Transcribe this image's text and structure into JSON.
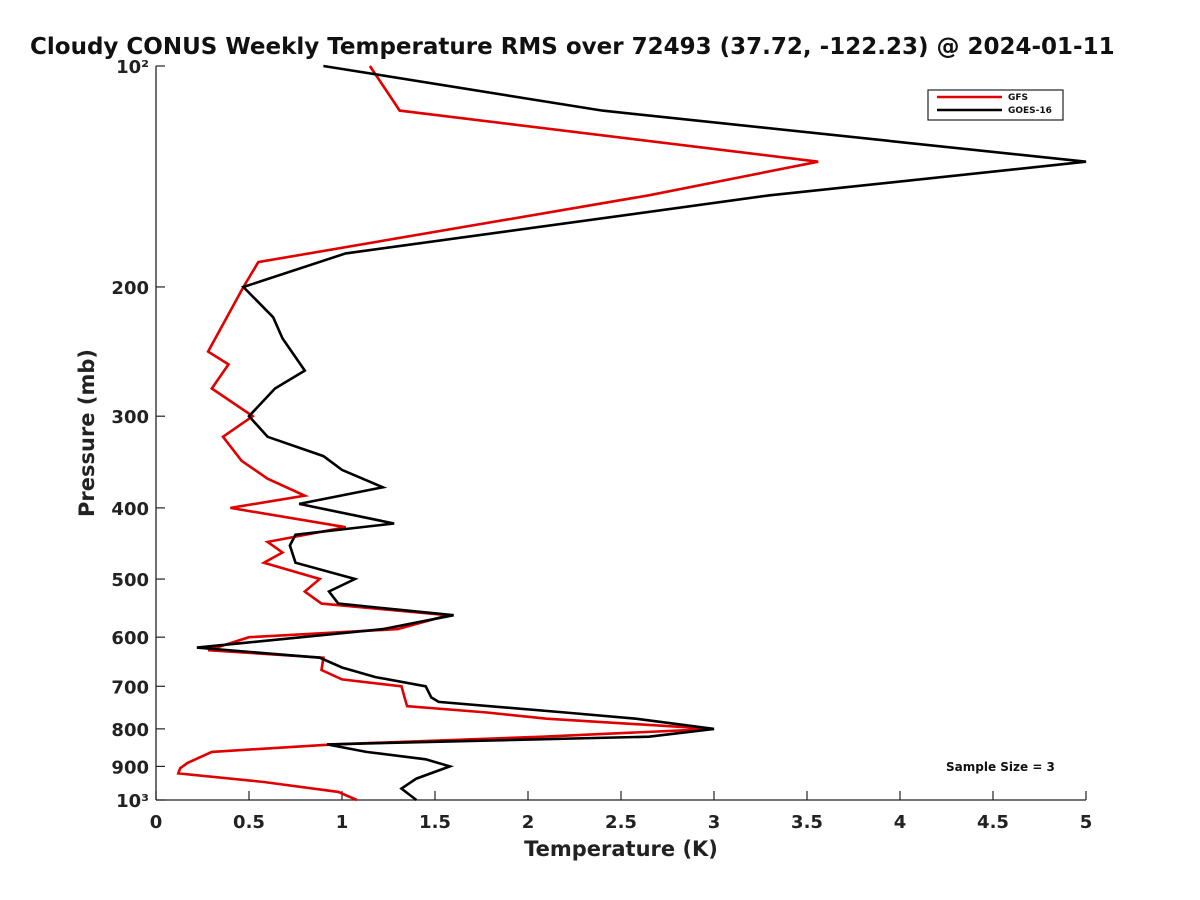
{
  "chart_data": {
    "type": "line",
    "title": "Cloudy CONUS Weekly Temperature RMS over 72493 (37.72, -122.23) @ 2024-01-11",
    "xlabel": "Temperature (K)",
    "ylabel": "Pressure (mb)",
    "xlim": [
      0,
      5
    ],
    "ylim": [
      100,
      1000
    ],
    "y_scale": "log",
    "y_reversed": true,
    "grid": false,
    "legend": "top-right",
    "x_ticks": [
      0,
      0.5,
      1,
      1.5,
      2,
      2.5,
      3,
      3.5,
      4,
      4.5,
      5
    ],
    "x_tick_labels": [
      "0",
      "0.5",
      "1",
      "1.5",
      "2",
      "2.5",
      "3",
      "3.5",
      "4",
      "4.5",
      "5"
    ],
    "y_ticks": [
      100,
      200,
      300,
      400,
      500,
      600,
      700,
      800,
      900,
      1000
    ],
    "y_tick_labels": [
      "10²",
      "200",
      "300",
      "400",
      "500",
      "600",
      "700",
      "800",
      "900",
      "10³"
    ],
    "annotation": "Sample Size = 3",
    "series": [
      {
        "name": "GFS",
        "color": "#e00000",
        "points": [
          [
            1.15,
            100
          ],
          [
            1.31,
            115
          ],
          [
            3.56,
            135
          ],
          [
            2.65,
            150
          ],
          [
            0.55,
            185
          ],
          [
            0.47,
            200
          ],
          [
            0.28,
            245
          ],
          [
            0.39,
            255
          ],
          [
            0.3,
            275
          ],
          [
            0.52,
            300
          ],
          [
            0.36,
            320
          ],
          [
            0.46,
            345
          ],
          [
            0.6,
            365
          ],
          [
            0.8,
            385
          ],
          [
            0.4,
            400
          ],
          [
            1.02,
            425
          ],
          [
            0.6,
            445
          ],
          [
            0.68,
            460
          ],
          [
            0.58,
            475
          ],
          [
            0.88,
            500
          ],
          [
            0.8,
            520
          ],
          [
            0.89,
            540
          ],
          [
            1.57,
            560
          ],
          [
            1.3,
            585
          ],
          [
            0.5,
            600
          ],
          [
            0.28,
            625
          ],
          [
            0.9,
            640
          ],
          [
            0.89,
            665
          ],
          [
            1.0,
            685
          ],
          [
            1.32,
            700
          ],
          [
            1.34,
            730
          ],
          [
            1.35,
            745
          ],
          [
            1.78,
            760
          ],
          [
            2.1,
            775
          ],
          [
            3.0,
            800
          ],
          [
            2.08,
            820
          ],
          [
            0.95,
            840
          ],
          [
            0.3,
            860
          ],
          [
            0.17,
            890
          ],
          [
            0.13,
            905
          ],
          [
            0.12,
            920
          ],
          [
            0.58,
            945
          ],
          [
            0.98,
            975
          ],
          [
            1.08,
            1000
          ]
        ]
      },
      {
        "name": "GOES-16",
        "color": "#000000",
        "points": [
          [
            0.9,
            100
          ],
          [
            2.4,
            115
          ],
          [
            5.0,
            135
          ],
          [
            3.3,
            150
          ],
          [
            1.02,
            180
          ],
          [
            0.47,
            200
          ],
          [
            0.63,
            220
          ],
          [
            0.68,
            235
          ],
          [
            0.8,
            260
          ],
          [
            0.64,
            275
          ],
          [
            0.5,
            300
          ],
          [
            0.6,
            320
          ],
          [
            0.9,
            340
          ],
          [
            1.0,
            355
          ],
          [
            1.22,
            375
          ],
          [
            0.77,
            395
          ],
          [
            1.28,
            420
          ],
          [
            0.75,
            435
          ],
          [
            0.72,
            450
          ],
          [
            0.75,
            475
          ],
          [
            1.07,
            500
          ],
          [
            0.93,
            520
          ],
          [
            0.98,
            540
          ],
          [
            1.6,
            560
          ],
          [
            1.22,
            585
          ],
          [
            0.22,
            620
          ],
          [
            0.88,
            640
          ],
          [
            1.0,
            660
          ],
          [
            1.18,
            680
          ],
          [
            1.45,
            700
          ],
          [
            1.48,
            725
          ],
          [
            1.52,
            735
          ],
          [
            2.2,
            760
          ],
          [
            2.58,
            775
          ],
          [
            3.0,
            800
          ],
          [
            2.65,
            820
          ],
          [
            0.92,
            840
          ],
          [
            1.13,
            860
          ],
          [
            1.45,
            880
          ],
          [
            1.58,
            900
          ],
          [
            1.4,
            935
          ],
          [
            1.32,
            965
          ],
          [
            1.4,
            1000
          ]
        ]
      }
    ]
  }
}
